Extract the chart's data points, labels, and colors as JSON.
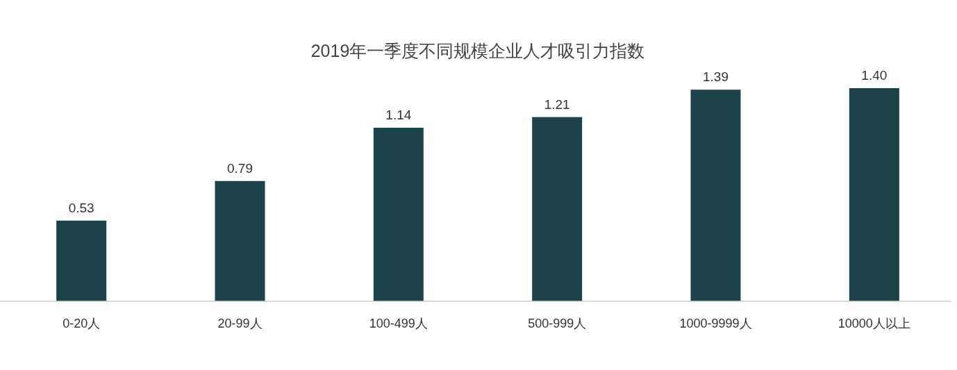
{
  "chart_data": {
    "type": "bar",
    "title": "2019年一季度不同规模企业人才吸引力指数",
    "categories": [
      "0-20人",
      "20-99人",
      "100-499人",
      "500-999人",
      "1000-9999人",
      "10000人以上"
    ],
    "values": [
      0.53,
      0.79,
      1.14,
      1.21,
      1.39,
      1.4
    ],
    "value_labels": [
      "0.53",
      "0.79",
      "1.14",
      "1.21",
      "1.39",
      "1.40"
    ],
    "color": "#1c434a"
  }
}
